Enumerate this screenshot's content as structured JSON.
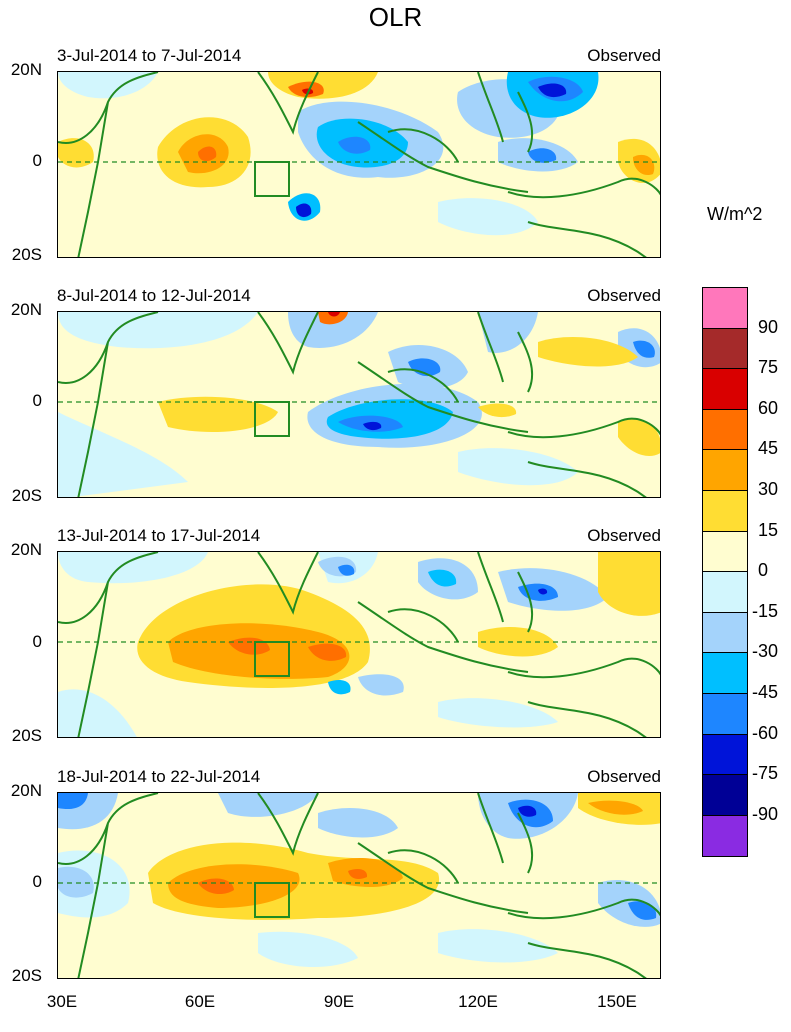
{
  "figure": {
    "title": "OLR",
    "units": "W/m^2",
    "lat_labels": [
      "20N",
      "0",
      "20S"
    ],
    "lon_labels": [
      "30E",
      "60E",
      "90E",
      "120E",
      "150E"
    ]
  },
  "panels": [
    {
      "period": "3-Jul-2014 to 7-Jul-2014",
      "tag": "Observed"
    },
    {
      "period": "8-Jul-2014 to 12-Jul-2014",
      "tag": "Observed"
    },
    {
      "period": "13-Jul-2014 to 17-Jul-2014",
      "tag": "Observed"
    },
    {
      "period": "18-Jul-2014 to 22-Jul-2014",
      "tag": "Observed"
    }
  ],
  "colorbar": {
    "labels": [
      "90",
      "75",
      "60",
      "45",
      "30",
      "15",
      "0",
      "-15",
      "-30",
      "-45",
      "-60",
      "-75",
      "-90"
    ],
    "colors": [
      "#ff77bb",
      "#a52a2a",
      "#d90000",
      "#ff6f00",
      "#ffa500",
      "#ffdd33",
      "#fffdd0",
      "#d2f6fd",
      "#a4d3fb",
      "#00bfff",
      "#1e86ff",
      "#0014d9",
      "#000096",
      "#8a2be2"
    ]
  },
  "map_colors": {
    "coast": "#228b22",
    "equator": "#228b22"
  }
}
